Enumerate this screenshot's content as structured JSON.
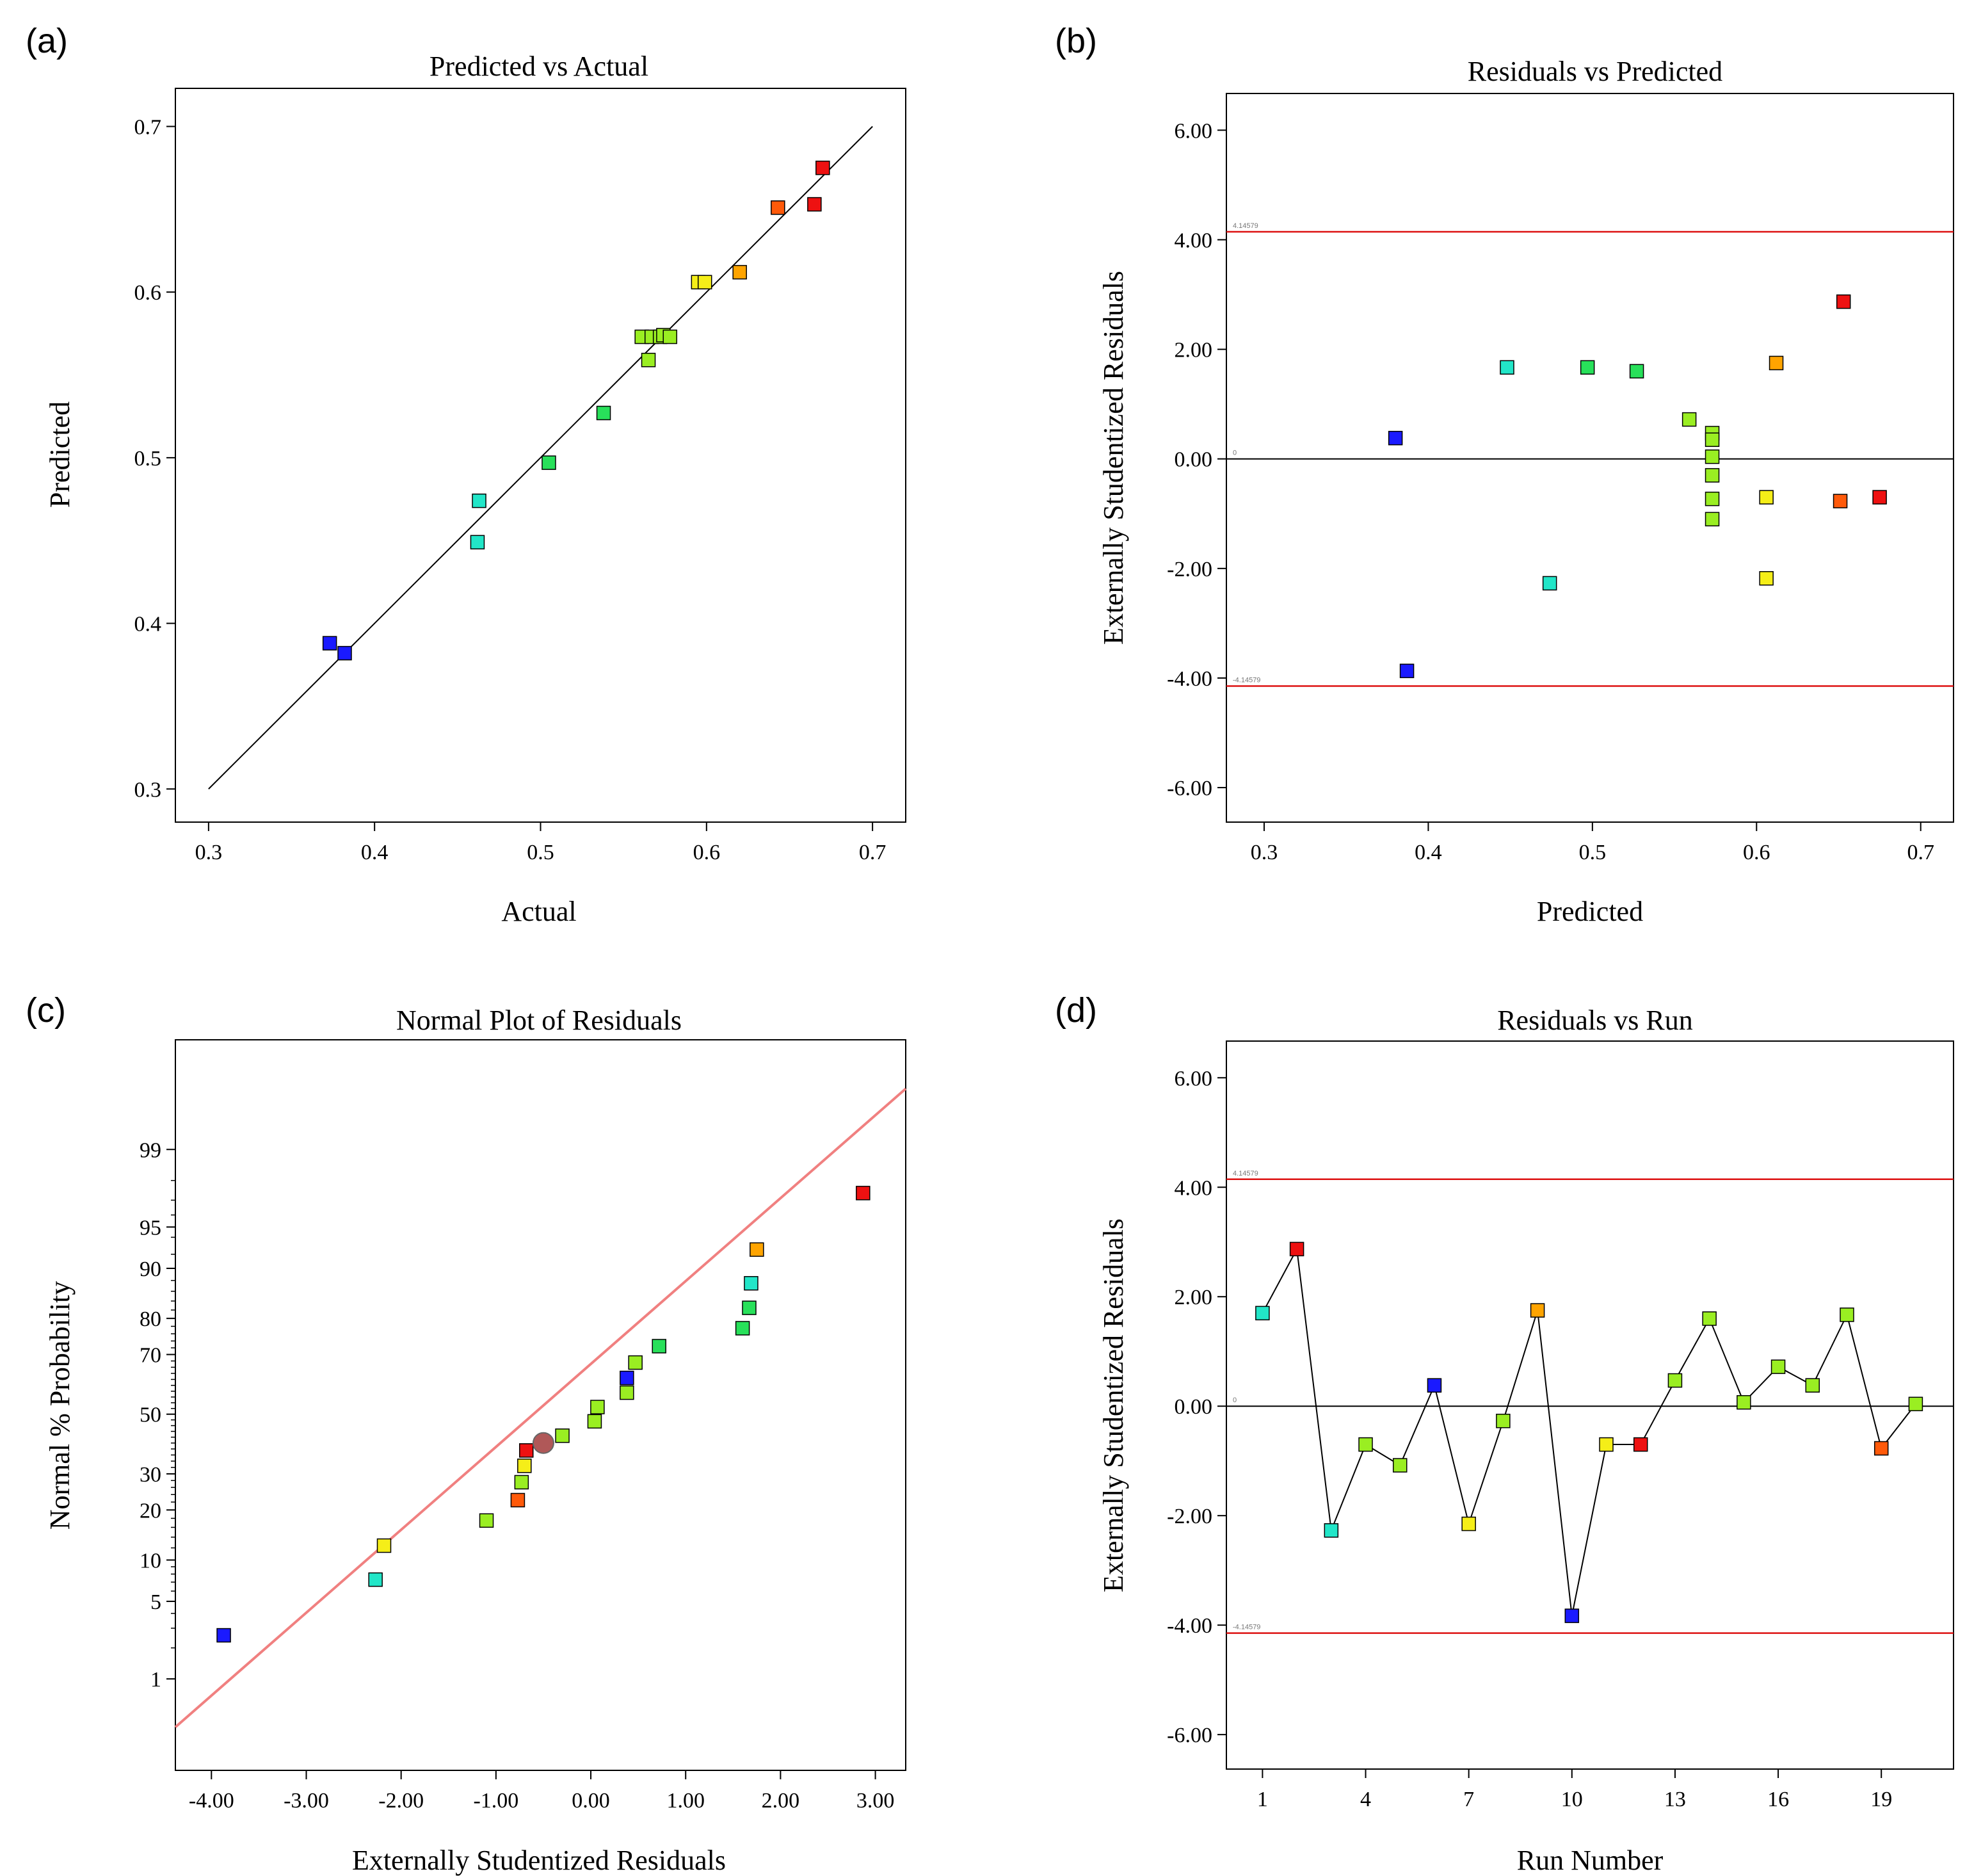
{
  "colors": {
    "palette": [
      "#1a1aff",
      "#22e6c8",
      "#28e05a",
      "#9aee22",
      "#f5ee18",
      "#ffa400",
      "#ff5a0a",
      "#ee1111"
    ],
    "limit_line": "#dd1111",
    "fit_line": "#f08080",
    "median_point": "#b05858"
  },
  "chart_data": [
    {
      "id": "a",
      "panel_label": "(a)",
      "type": "scatter",
      "title": "Predicted vs Actual",
      "xlabel": "Actual",
      "ylabel": "Predicted",
      "xlim": [
        0.28,
        0.72
      ],
      "ylim": [
        0.28,
        0.723
      ],
      "xticks": [
        0.3,
        0.4,
        0.5,
        0.6,
        0.7
      ],
      "xtick_labels": [
        "0.3",
        "0.4",
        "0.5",
        "0.6",
        "0.7"
      ],
      "yticks": [
        0.3,
        0.4,
        0.5,
        0.6,
        0.7
      ],
      "ytick_labels": [
        "0.3",
        "0.4",
        "0.5",
        "0.6",
        "0.7"
      ],
      "reference_line": [
        [
          0.3,
          0.3
        ],
        [
          0.7,
          0.7
        ]
      ],
      "points": [
        {
          "x": 0.373,
          "y": 0.388,
          "c": 0
        },
        {
          "x": 0.382,
          "y": 0.382,
          "c": 0
        },
        {
          "x": 0.463,
          "y": 0.474,
          "c": 1
        },
        {
          "x": 0.462,
          "y": 0.449,
          "c": 1
        },
        {
          "x": 0.505,
          "y": 0.497,
          "c": 2
        },
        {
          "x": 0.538,
          "y": 0.527,
          "c": 2
        },
        {
          "x": 0.565,
          "y": 0.559,
          "c": 3
        },
        {
          "x": 0.561,
          "y": 0.573,
          "c": 3
        },
        {
          "x": 0.567,
          "y": 0.573,
          "c": 3
        },
        {
          "x": 0.572,
          "y": 0.573,
          "c": 3
        },
        {
          "x": 0.574,
          "y": 0.574,
          "c": 3
        },
        {
          "x": 0.578,
          "y": 0.573,
          "c": 3
        },
        {
          "x": 0.595,
          "y": 0.606,
          "c": 4
        },
        {
          "x": 0.599,
          "y": 0.606,
          "c": 4
        },
        {
          "x": 0.62,
          "y": 0.612,
          "c": 5
        },
        {
          "x": 0.643,
          "y": 0.651,
          "c": 6
        },
        {
          "x": 0.665,
          "y": 0.653,
          "c": 7
        },
        {
          "x": 0.67,
          "y": 0.675,
          "c": 7
        }
      ]
    },
    {
      "id": "b",
      "panel_label": "(b)",
      "type": "scatter",
      "title": "Residuals vs Predicted",
      "xlabel": "Predicted",
      "ylabel": "Externally Studentized Residuals",
      "xlim": [
        0.277,
        0.72
      ],
      "ylim": [
        -6.63,
        6.67
      ],
      "xticks": [
        0.3,
        0.4,
        0.5,
        0.6,
        0.7
      ],
      "xtick_labels": [
        "0.3",
        "0.4",
        "0.5",
        "0.6",
        "0.7"
      ],
      "yticks": [
        6,
        4,
        2,
        0,
        -2,
        -4,
        -6
      ],
      "ytick_labels": [
        "6.00",
        "4.00",
        "2.00",
        "0.00",
        "-2.00",
        "-4.00",
        "-6.00"
      ],
      "limit_lines": [
        {
          "y": 4.14579,
          "label": "4.14579"
        },
        {
          "y": -4.14579,
          "label": "-4.14579"
        }
      ],
      "zero_line": {
        "y": 0,
        "label": "0"
      },
      "points": [
        {
          "x": 0.38,
          "y": 0.38,
          "c": 0
        },
        {
          "x": 0.387,
          "y": -3.87,
          "c": 0
        },
        {
          "x": 0.448,
          "y": 1.67,
          "c": 1
        },
        {
          "x": 0.474,
          "y": -2.27,
          "c": 1
        },
        {
          "x": 0.497,
          "y": 1.67,
          "c": 2
        },
        {
          "x": 0.527,
          "y": 1.6,
          "c": 2
        },
        {
          "x": 0.559,
          "y": 0.72,
          "c": 3
        },
        {
          "x": 0.573,
          "y": 0.47,
          "c": 3
        },
        {
          "x": 0.573,
          "y": 0.35,
          "c": 3
        },
        {
          "x": 0.573,
          "y": 0.04,
          "c": 3
        },
        {
          "x": 0.573,
          "y": -0.3,
          "c": 3
        },
        {
          "x": 0.573,
          "y": -0.73,
          "c": 3
        },
        {
          "x": 0.573,
          "y": -1.1,
          "c": 3
        },
        {
          "x": 0.606,
          "y": -0.7,
          "c": 4
        },
        {
          "x": 0.606,
          "y": -2.18,
          "c": 4
        },
        {
          "x": 0.612,
          "y": 1.75,
          "c": 5
        },
        {
          "x": 0.651,
          "y": -0.77,
          "c": 6
        },
        {
          "x": 0.653,
          "y": 2.87,
          "c": 7
        },
        {
          "x": 0.675,
          "y": -0.7,
          "c": 7
        }
      ]
    },
    {
      "id": "c",
      "panel_label": "(c)",
      "type": "scatter",
      "title": "Normal Plot of Residuals",
      "xlabel": "Externally Studentized Residuals",
      "ylabel": "Normal % Probability",
      "xlim": [
        -4.38,
        3.32
      ],
      "ylim_z": [
        -3.13,
        3.29
      ],
      "xticks": [
        -4,
        -3,
        -2,
        -1,
        0,
        1,
        2,
        3
      ],
      "xtick_labels": [
        "-4.00",
        "-3.00",
        "-2.00",
        "-1.00",
        "0.00",
        "1.00",
        "2.00",
        "3.00"
      ],
      "yticks_percent": [
        1,
        5,
        10,
        20,
        30,
        50,
        70,
        80,
        90,
        95,
        99
      ],
      "ytick_labels": [
        "1",
        "5",
        "10",
        "20",
        "30",
        "50",
        "70",
        "80",
        "90",
        "95",
        "99"
      ],
      "fit_line": [
        [
          -4.38,
          -2.75
        ],
        [
          3.32,
          2.86
        ]
      ],
      "median_point": {
        "x": -0.5,
        "p": 40
      },
      "points": [
        {
          "x": -3.87,
          "p": 2.6,
          "c": 0
        },
        {
          "x": -2.27,
          "p": 7.3,
          "c": 1
        },
        {
          "x": -2.18,
          "p": 12.4,
          "c": 4
        },
        {
          "x": -1.1,
          "p": 17.5,
          "c": 3
        },
        {
          "x": -0.77,
          "p": 22.5,
          "c": 6
        },
        {
          "x": -0.73,
          "p": 27.5,
          "c": 3
        },
        {
          "x": -0.7,
          "p": 32.5,
          "c": 4
        },
        {
          "x": -0.68,
          "p": 37.5,
          "c": 7
        },
        {
          "x": -0.3,
          "p": 42.5,
          "c": 3
        },
        {
          "x": 0.04,
          "p": 47.5,
          "c": 3
        },
        {
          "x": 0.07,
          "p": 52.5,
          "c": 3
        },
        {
          "x": 0.38,
          "p": 57.5,
          "c": 3
        },
        {
          "x": 0.38,
          "p": 62.5,
          "c": 0
        },
        {
          "x": 0.47,
          "p": 67.5,
          "c": 3
        },
        {
          "x": 0.72,
          "p": 72.5,
          "c": 2
        },
        {
          "x": 1.6,
          "p": 77.5,
          "c": 2
        },
        {
          "x": 1.67,
          "p": 82.5,
          "c": 2
        },
        {
          "x": 1.69,
          "p": 87.5,
          "c": 1
        },
        {
          "x": 1.75,
          "p": 92.6,
          "c": 5
        },
        {
          "x": 2.87,
          "p": 97.4,
          "c": 7
        }
      ]
    },
    {
      "id": "d",
      "panel_label": "(d)",
      "type": "line",
      "title": "Residuals vs Run",
      "xlabel": "Run Number",
      "ylabel": "Externally Studentized Residuals",
      "xlim": [
        -0.05,
        21.1
      ],
      "ylim": [
        -6.63,
        6.67
      ],
      "xticks": [
        1,
        4,
        7,
        10,
        13,
        16,
        19
      ],
      "xtick_labels": [
        "1",
        "4",
        "7",
        "10",
        "13",
        "16",
        "19"
      ],
      "yticks": [
        6,
        4,
        2,
        0,
        -2,
        -4,
        -6
      ],
      "ytick_labels": [
        "6.00",
        "4.00",
        "2.00",
        "0.00",
        "-2.00",
        "-4.00",
        "-6.00"
      ],
      "limit_lines": [
        {
          "y": 4.14579,
          "label": "4.14579"
        },
        {
          "y": -4.14579,
          "label": "-4.14579"
        }
      ],
      "zero_line": {
        "y": 0,
        "label": "0"
      },
      "points": [
        {
          "x": 1,
          "y": 1.7,
          "c": 1
        },
        {
          "x": 2,
          "y": 2.87,
          "c": 7
        },
        {
          "x": 3,
          "y": -2.27,
          "c": 1
        },
        {
          "x": 4,
          "y": -0.7,
          "c": 3
        },
        {
          "x": 5,
          "y": -1.08,
          "c": 3
        },
        {
          "x": 6,
          "y": 0.38,
          "c": 0
        },
        {
          "x": 7,
          "y": -2.15,
          "c": 4
        },
        {
          "x": 8,
          "y": -0.27,
          "c": 3
        },
        {
          "x": 9,
          "y": 1.75,
          "c": 5
        },
        {
          "x": 10,
          "y": -3.83,
          "c": 0
        },
        {
          "x": 11,
          "y": -0.7,
          "c": 4
        },
        {
          "x": 12,
          "y": -0.7,
          "c": 7
        },
        {
          "x": 13,
          "y": 0.47,
          "c": 3
        },
        {
          "x": 14,
          "y": 1.6,
          "c": 3
        },
        {
          "x": 15,
          "y": 0.07,
          "c": 3
        },
        {
          "x": 16,
          "y": 0.72,
          "c": 3
        },
        {
          "x": 17,
          "y": 0.38,
          "c": 3
        },
        {
          "x": 18,
          "y": 1.67,
          "c": 3
        },
        {
          "x": 19,
          "y": -0.77,
          "c": 6
        },
        {
          "x": 20,
          "y": 0.04,
          "c": 3
        }
      ]
    }
  ]
}
